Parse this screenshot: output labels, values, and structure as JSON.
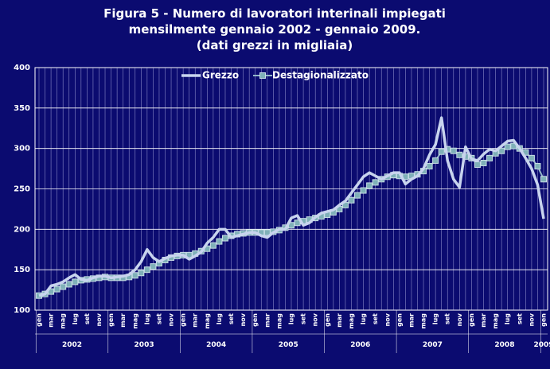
{
  "chart_data": {
    "type": "line",
    "title": [
      "Figura 5 - Numero di lavoratori interinali impiegati",
      "mensilmente gennaio 2002 - gennaio 2009.",
      "(dati grezzi in migliaia)"
    ],
    "categories": [
      "gen",
      null,
      "mar",
      null,
      "mag",
      null,
      "lug",
      null,
      "set",
      null,
      "nov",
      null,
      "gen",
      null,
      "mar",
      null,
      "mag",
      null,
      "lug",
      null,
      "set",
      null,
      "nov",
      null,
      "gen",
      null,
      "mar",
      null,
      "mag",
      null,
      "lug",
      null,
      "set",
      null,
      "nov",
      null,
      "gen",
      null,
      "mar",
      null,
      "mag",
      null,
      "lug",
      null,
      "set",
      null,
      "nov",
      null,
      "gen",
      null,
      "mar",
      null,
      "mag",
      null,
      "lug",
      null,
      "set",
      null,
      "nov",
      null,
      "gen",
      null,
      "mar",
      null,
      "mag",
      null,
      "lug",
      null,
      "set",
      null,
      "nov",
      null,
      "gen",
      null,
      "mar",
      null,
      "mag",
      null,
      "lug",
      null,
      "set",
      null,
      "nov",
      null,
      "gen"
    ],
    "years": [
      "2002",
      "2003",
      "2004",
      "2005",
      "2006",
      "2007",
      "2008",
      "2009"
    ],
    "series": [
      {
        "name": "Grezzo",
        "color": "#c8d4ee",
        "values": [
          118,
          120,
          130,
          132,
          135,
          140,
          144,
          138,
          137,
          140,
          142,
          142,
          140,
          141,
          142,
          144,
          150,
          160,
          175,
          165,
          160,
          164,
          167,
          168,
          168,
          163,
          167,
          172,
          183,
          190,
          200,
          200,
          190,
          192,
          194,
          196,
          196,
          192,
          190,
          196,
          200,
          200,
          214,
          217,
          205,
          208,
          215,
          220,
          222,
          224,
          230,
          235,
          245,
          255,
          265,
          270,
          266,
          262,
          266,
          270,
          270,
          256,
          262,
          266,
          275,
          292,
          305,
          338,
          285,
          262,
          252,
          302,
          287,
          285,
          293,
          299,
          297,
          303,
          309,
          310,
          300,
          288,
          275,
          255,
          213
        ]
      },
      {
        "name": "Destagionalizzato",
        "color": "#93b6c9",
        "values": [
          118,
          120,
          123,
          126,
          129,
          132,
          135,
          137,
          138,
          139,
          140,
          141,
          140,
          140,
          140,
          141,
          143,
          146,
          150,
          154,
          158,
          162,
          165,
          167,
          168,
          168,
          170,
          173,
          176,
          180,
          185,
          189,
          192,
          194,
          195,
          196,
          196,
          196,
          196,
          197,
          199,
          202,
          205,
          208,
          210,
          212,
          214,
          216,
          218,
          221,
          225,
          230,
          236,
          242,
          248,
          254,
          258,
          262,
          265,
          267,
          266,
          265,
          266,
          268,
          272,
          278,
          285,
          296,
          299,
          297,
          292,
          290,
          288,
          280,
          282,
          288,
          294,
          297,
          302,
          303,
          300,
          295,
          288,
          278,
          262
        ]
      }
    ],
    "ylim": [
      100,
      400
    ],
    "yticks": [
      100,
      150,
      200,
      250,
      300,
      350,
      400
    ],
    "grid": true,
    "legend": "top"
  }
}
